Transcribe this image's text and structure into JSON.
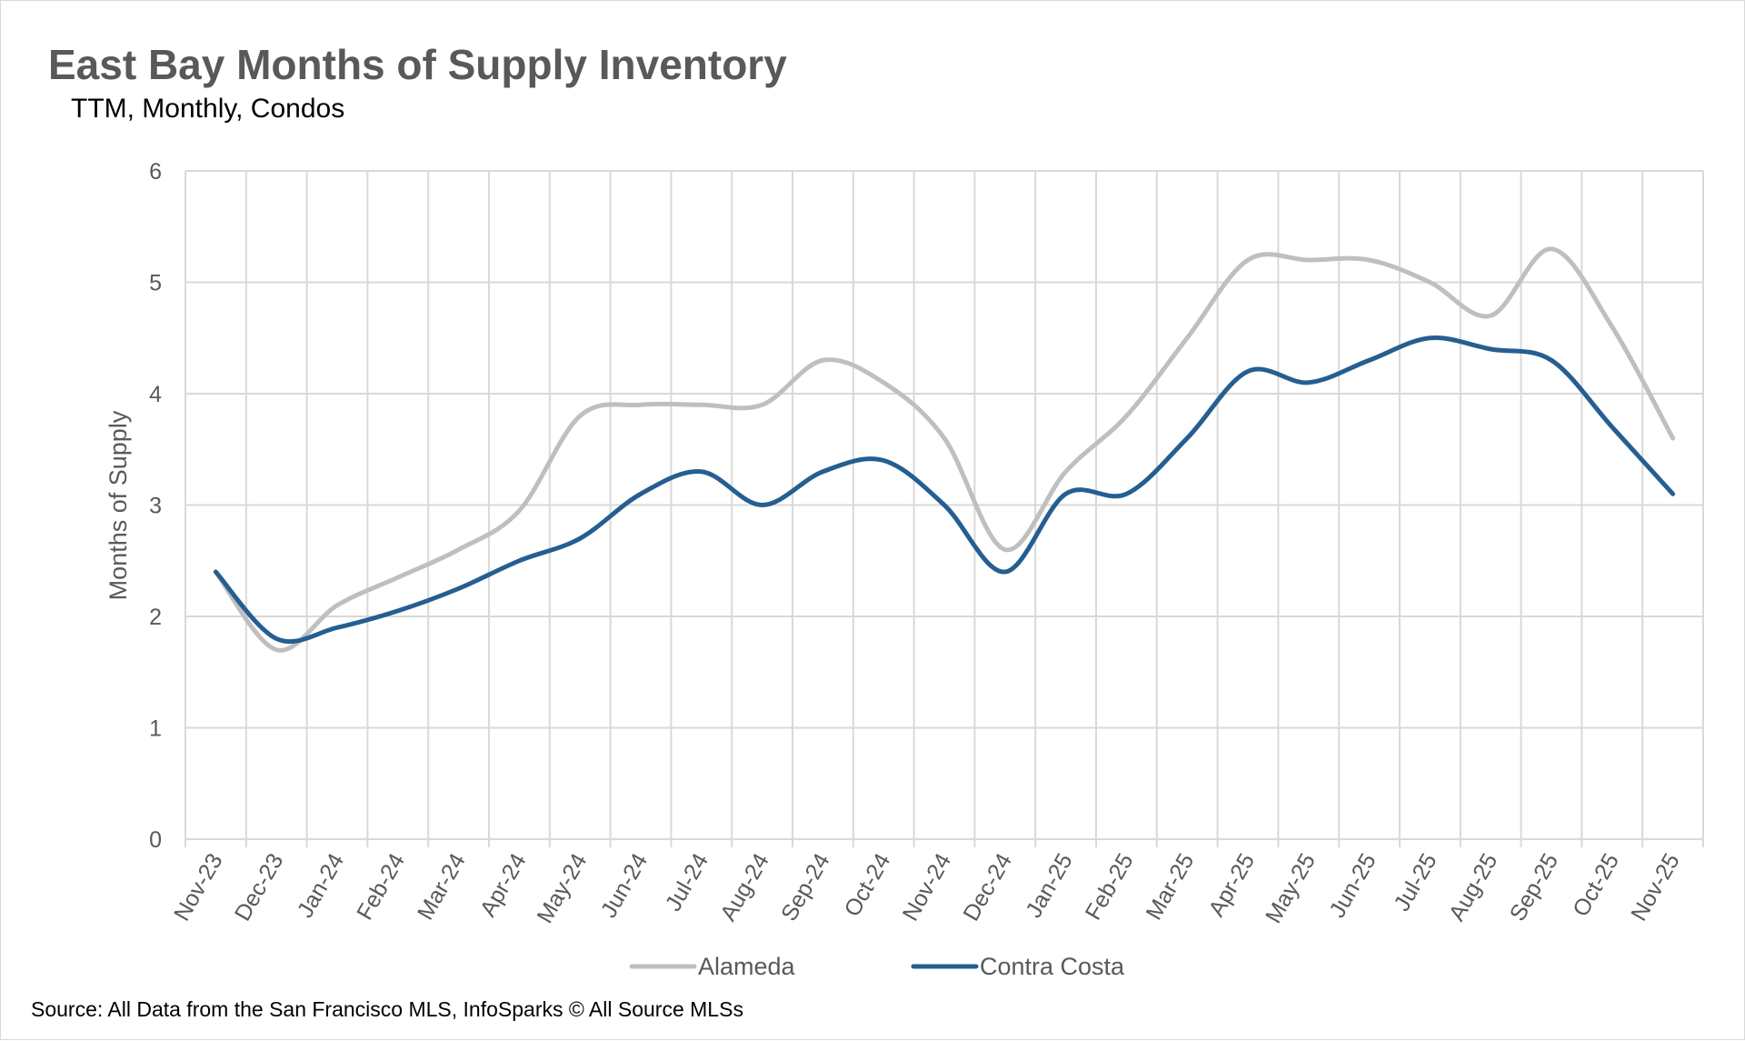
{
  "chart_data": {
    "type": "line",
    "title": "East Bay Months of Supply Inventory",
    "subtitle": "TTM, Monthly, Condos",
    "ylabel": "Months of Supply",
    "xlabel": "",
    "ylim": [
      0,
      6
    ],
    "yticks": [
      "0",
      "1",
      "2",
      "3",
      "4",
      "5",
      "6"
    ],
    "grid": true,
    "smooth": true,
    "legend_position": "bottom",
    "categories": [
      "Nov-23",
      "Dec-23",
      "Jan-24",
      "Feb-24",
      "Mar-24",
      "Apr-24",
      "May-24",
      "Jun-24",
      "Jul-24",
      "Aug-24",
      "Sep-24",
      "Oct-24",
      "Nov-24",
      "Dec-24",
      "Jan-25",
      "Feb-25",
      "Mar-25",
      "Apr-25",
      "May-25",
      "Jun-25",
      "Jul-25",
      "Aug-25",
      "Sep-25",
      "Oct-25",
      "Nov-25"
    ],
    "series": [
      {
        "name": "Alameda",
        "color": "#bfbfbf",
        "values": [
          2.4,
          1.7,
          2.1,
          2.35,
          2.6,
          2.95,
          3.8,
          3.9,
          3.9,
          3.9,
          4.3,
          4.1,
          3.6,
          2.6,
          3.3,
          3.8,
          4.5,
          5.2,
          5.2,
          5.2,
          5.0,
          4.7,
          5.3,
          4.6,
          3.6
        ]
      },
      {
        "name": "Contra Costa",
        "color": "#255e91",
        "values": [
          2.4,
          1.8,
          1.9,
          2.05,
          2.25,
          2.5,
          2.7,
          3.1,
          3.3,
          3.0,
          3.3,
          3.4,
          3.0,
          2.4,
          3.1,
          3.1,
          3.6,
          4.2,
          4.1,
          4.3,
          4.5,
          4.4,
          4.3,
          3.7,
          3.1
        ]
      }
    ],
    "source": "Source: All Data from the San Francisco MLS, InfoSparks © All Source MLSs"
  }
}
